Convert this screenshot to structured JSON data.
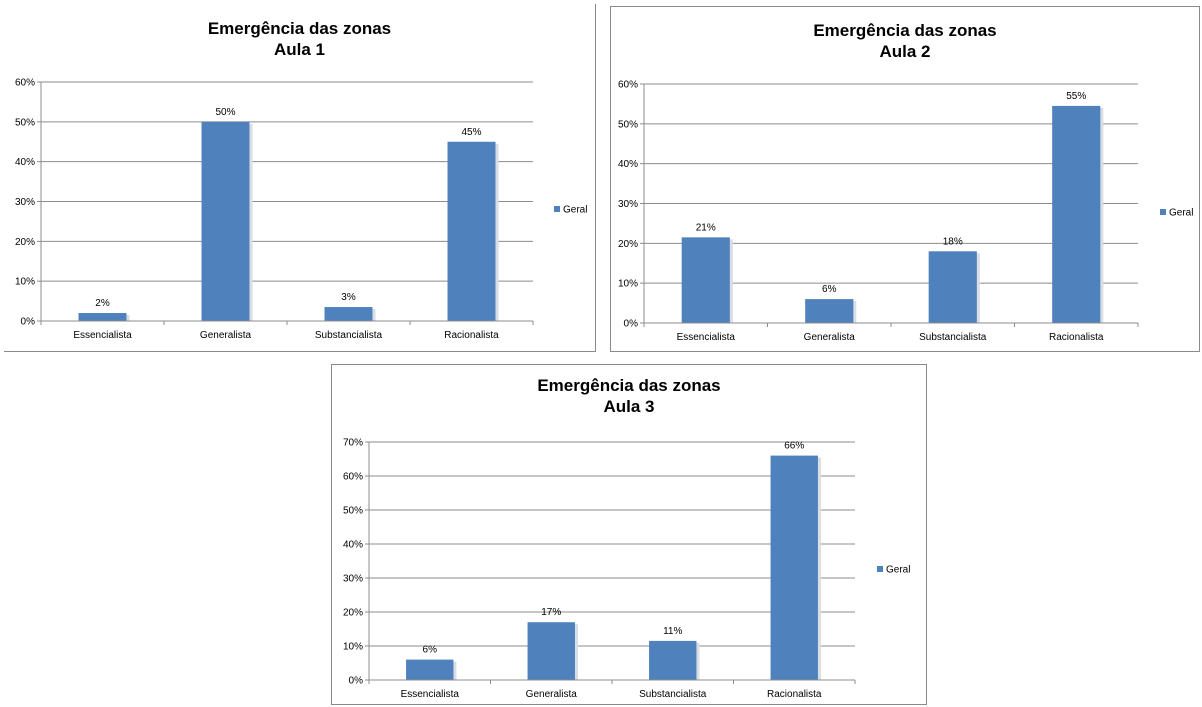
{
  "chart_data": [
    {
      "type": "bar",
      "title": "Emergência das zonas",
      "subtitle": "Aula 1",
      "categories": [
        "Essencialista",
        "Generalista",
        "Substancialista",
        "Racionalista"
      ],
      "series": [
        {
          "name": "Geral",
          "values": [
            0.02,
            0.5,
            0.035,
            0.45
          ]
        }
      ],
      "data_labels": [
        "2%",
        "50%",
        "3%",
        "45%"
      ],
      "ylim": [
        0,
        0.6
      ],
      "yticks": [
        "0%",
        "10%",
        "20%",
        "30%",
        "40%",
        "50%",
        "60%"
      ],
      "grid": true,
      "legend": "right",
      "color": "#4f81bd"
    },
    {
      "type": "bar",
      "title": "Emergência das zonas",
      "subtitle": "Aula 2",
      "categories": [
        "Essencialista",
        "Generalista",
        "Substancialista",
        "Racionalista"
      ],
      "series": [
        {
          "name": "Geral",
          "values": [
            0.215,
            0.06,
            0.18,
            0.545
          ]
        }
      ],
      "data_labels": [
        "21%",
        "6%",
        "18%",
        "55%"
      ],
      "ylim": [
        0,
        0.6
      ],
      "yticks": [
        "0%",
        "10%",
        "20%",
        "30%",
        "40%",
        "50%",
        "60%"
      ],
      "grid": true,
      "legend": "right",
      "color": "#4f81bd"
    },
    {
      "type": "bar",
      "title": "Emergência das zonas",
      "subtitle": "Aula 3",
      "categories": [
        "Essencialista",
        "Generalista",
        "Substancialista",
        "Racionalista"
      ],
      "series": [
        {
          "name": "Geral",
          "values": [
            0.06,
            0.17,
            0.115,
            0.66
          ]
        }
      ],
      "data_labels": [
        "6%",
        "17%",
        "11%",
        "66%"
      ],
      "ylim": [
        0,
        0.7
      ],
      "yticks": [
        "0%",
        "10%",
        "20%",
        "30%",
        "40%",
        "50%",
        "60%",
        "70%"
      ],
      "grid": true,
      "legend": "right",
      "color": "#4f81bd"
    }
  ]
}
